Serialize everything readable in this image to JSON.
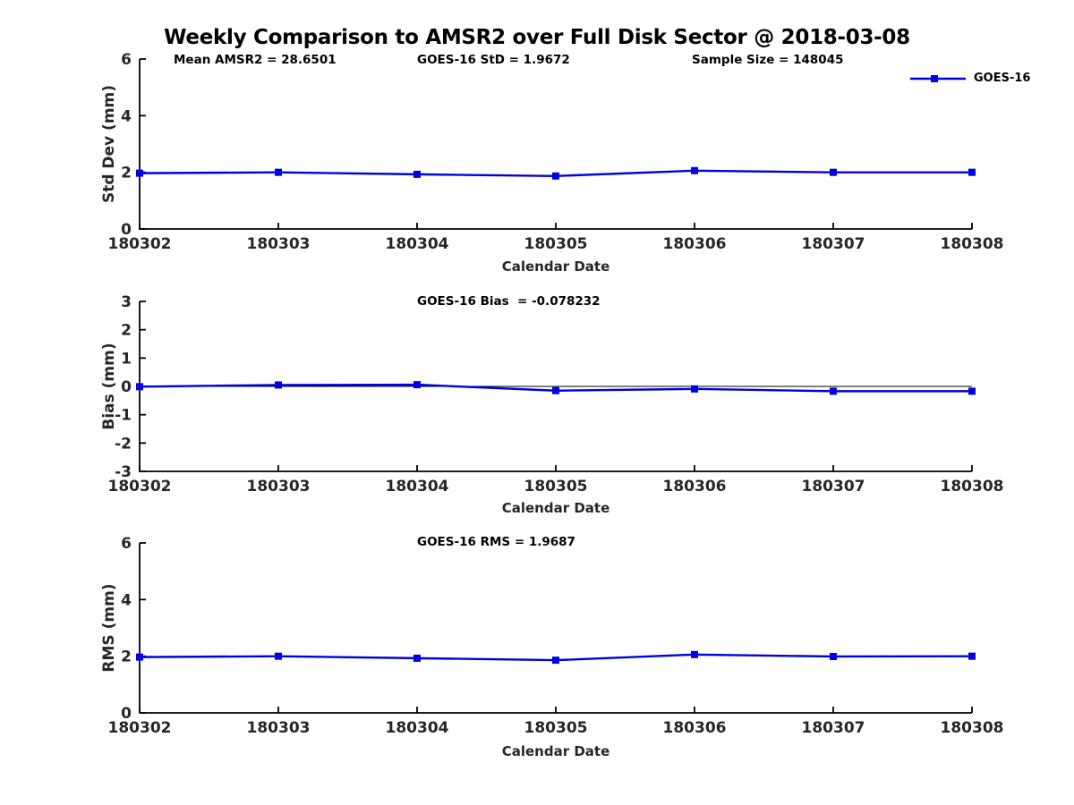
{
  "title": "Weekly Comparison to AMSR2 over Full Disk Sector @ 2018-03-08",
  "legend": {
    "label": "GOES-16",
    "series_color": "#0000dd"
  },
  "chart_data": [
    {
      "type": "line",
      "id": "std-dev",
      "ylabel": "Std Dev (mm)",
      "xlabel": "Calendar Date",
      "ylim": [
        0,
        6
      ],
      "yticks": [
        0,
        2,
        4,
        6
      ],
      "categories": [
        "180302",
        "180303",
        "180304",
        "180305",
        "180306",
        "180307",
        "180308"
      ],
      "series": [
        {
          "name": "GOES-16",
          "color": "#0000dd",
          "marker": "square",
          "values": [
            1.97,
            2.0,
            1.93,
            1.87,
            2.06,
            2.0,
            2.0
          ]
        }
      ],
      "annotations": [
        {
          "text": "Mean AMSR2 = 28.6501"
        },
        {
          "text": "GOES-16 StD = 1.9672"
        },
        {
          "text": "Sample Size = 148045"
        }
      ],
      "zero_line": false,
      "legend_visible": true,
      "grid": false
    },
    {
      "type": "line",
      "id": "bias",
      "ylabel": "Bias (mm)",
      "xlabel": "Calendar Date",
      "ylim": [
        -3,
        3
      ],
      "yticks": [
        -3,
        -2,
        -1,
        0,
        1,
        2,
        3
      ],
      "categories": [
        "180302",
        "180303",
        "180304",
        "180305",
        "180306",
        "180307",
        "180308"
      ],
      "series": [
        {
          "name": "GOES-16",
          "color": "#0000dd",
          "marker": "square",
          "values": [
            -0.01,
            0.05,
            0.06,
            -0.15,
            -0.09,
            -0.17,
            -0.17
          ]
        }
      ],
      "annotations": [
        {
          "text": "GOES-16 Bias  = -0.078232"
        }
      ],
      "zero_line": true,
      "legend_visible": false,
      "grid": false
    },
    {
      "type": "line",
      "id": "rms",
      "ylabel": "RMS (mm)",
      "xlabel": "Calendar Date",
      "ylim": [
        0,
        6
      ],
      "yticks": [
        0,
        2,
        4,
        6
      ],
      "categories": [
        "180302",
        "180303",
        "180304",
        "180305",
        "180306",
        "180307",
        "180308"
      ],
      "series": [
        {
          "name": "GOES-16",
          "color": "#0000dd",
          "marker": "square",
          "values": [
            1.97,
            2.0,
            1.93,
            1.86,
            2.06,
            1.99,
            2.0
          ]
        }
      ],
      "annotations": [
        {
          "text": "GOES-16 RMS = 1.9687"
        }
      ],
      "zero_line": false,
      "legend_visible": false,
      "grid": false
    }
  ]
}
